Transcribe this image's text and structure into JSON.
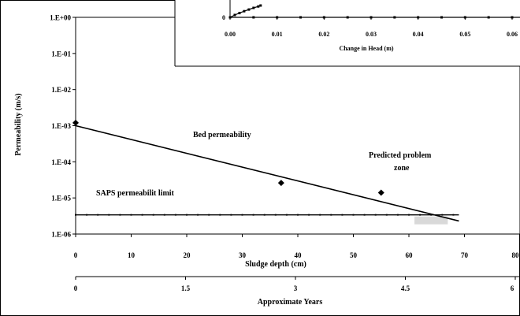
{
  "chart_data": [
    {
      "type": "scatter",
      "title": "",
      "ylabel": "Permeability (m/s)",
      "xlabel": "Sludge depth (cm)",
      "x2label": "Approximate Years",
      "y_scale": "log",
      "ylim": [
        1e-06,
        1
      ],
      "xlim": [
        0,
        80
      ],
      "y_ticks": [
        "1.E+00",
        "1.E-01",
        "1.E-02",
        "1.E-03",
        "1.E-04",
        "1.E-05",
        "1.E-06"
      ],
      "x_ticks": [
        "0",
        "10",
        "20",
        "30",
        "40",
        "50",
        "60",
        "70",
        "80"
      ],
      "x2_ticks": [
        "0",
        "1.5",
        "3",
        "4.5",
        "6"
      ],
      "series": [
        {
          "name": "",
          "kind": "points",
          "x": [
            0,
            37,
            55
          ],
          "y": [
            0.0012,
            2.6e-05,
            1.4e-05
          ]
        },
        {
          "name": "",
          "kind": "line",
          "x": [
            0,
            69
          ],
          "y": [
            0.001,
            2.3e-06
          ]
        },
        {
          "name": "",
          "kind": "limit",
          "y": 3.4e-06,
          "x": [
            0,
            69
          ]
        }
      ],
      "annotations": [
        {
          "text": "Bed permeability"
        },
        {
          "text": "SAPS permeabilit limit"
        },
        {
          "text": "Predicted problem"
        },
        {
          "text": "zone"
        }
      ],
      "grid": false,
      "legend": "none"
    },
    {
      "type": "line",
      "title": "",
      "xlabel": "Change in Head (m)",
      "xlim": [
        0,
        0.06
      ],
      "x_ticks": [
        "0.00",
        "0.01",
        "0.02",
        "0.03",
        "0.04",
        "0.05",
        "0.06"
      ],
      "y_ticks": [
        "0"
      ],
      "series": [
        {
          "name": "",
          "x": [
            0,
            0.001,
            0.002,
            0.003,
            0.004,
            0.005,
            0.006,
            0.0065
          ],
          "y": [
            0,
            0.1,
            0.18,
            0.26,
            0.33,
            0.4,
            0.46,
            0.5
          ]
        },
        {
          "name": "",
          "x": [
            0,
            0.005,
            0.01,
            0.015,
            0.02,
            0.025,
            0.03,
            0.035,
            0.04,
            0.045,
            0.05,
            0.055,
            0.06,
            0.062
          ],
          "y": [
            0,
            0,
            0,
            0,
            0,
            0,
            0,
            0,
            0,
            0,
            0,
            0,
            0,
            0
          ]
        }
      ],
      "legend": "none"
    }
  ]
}
